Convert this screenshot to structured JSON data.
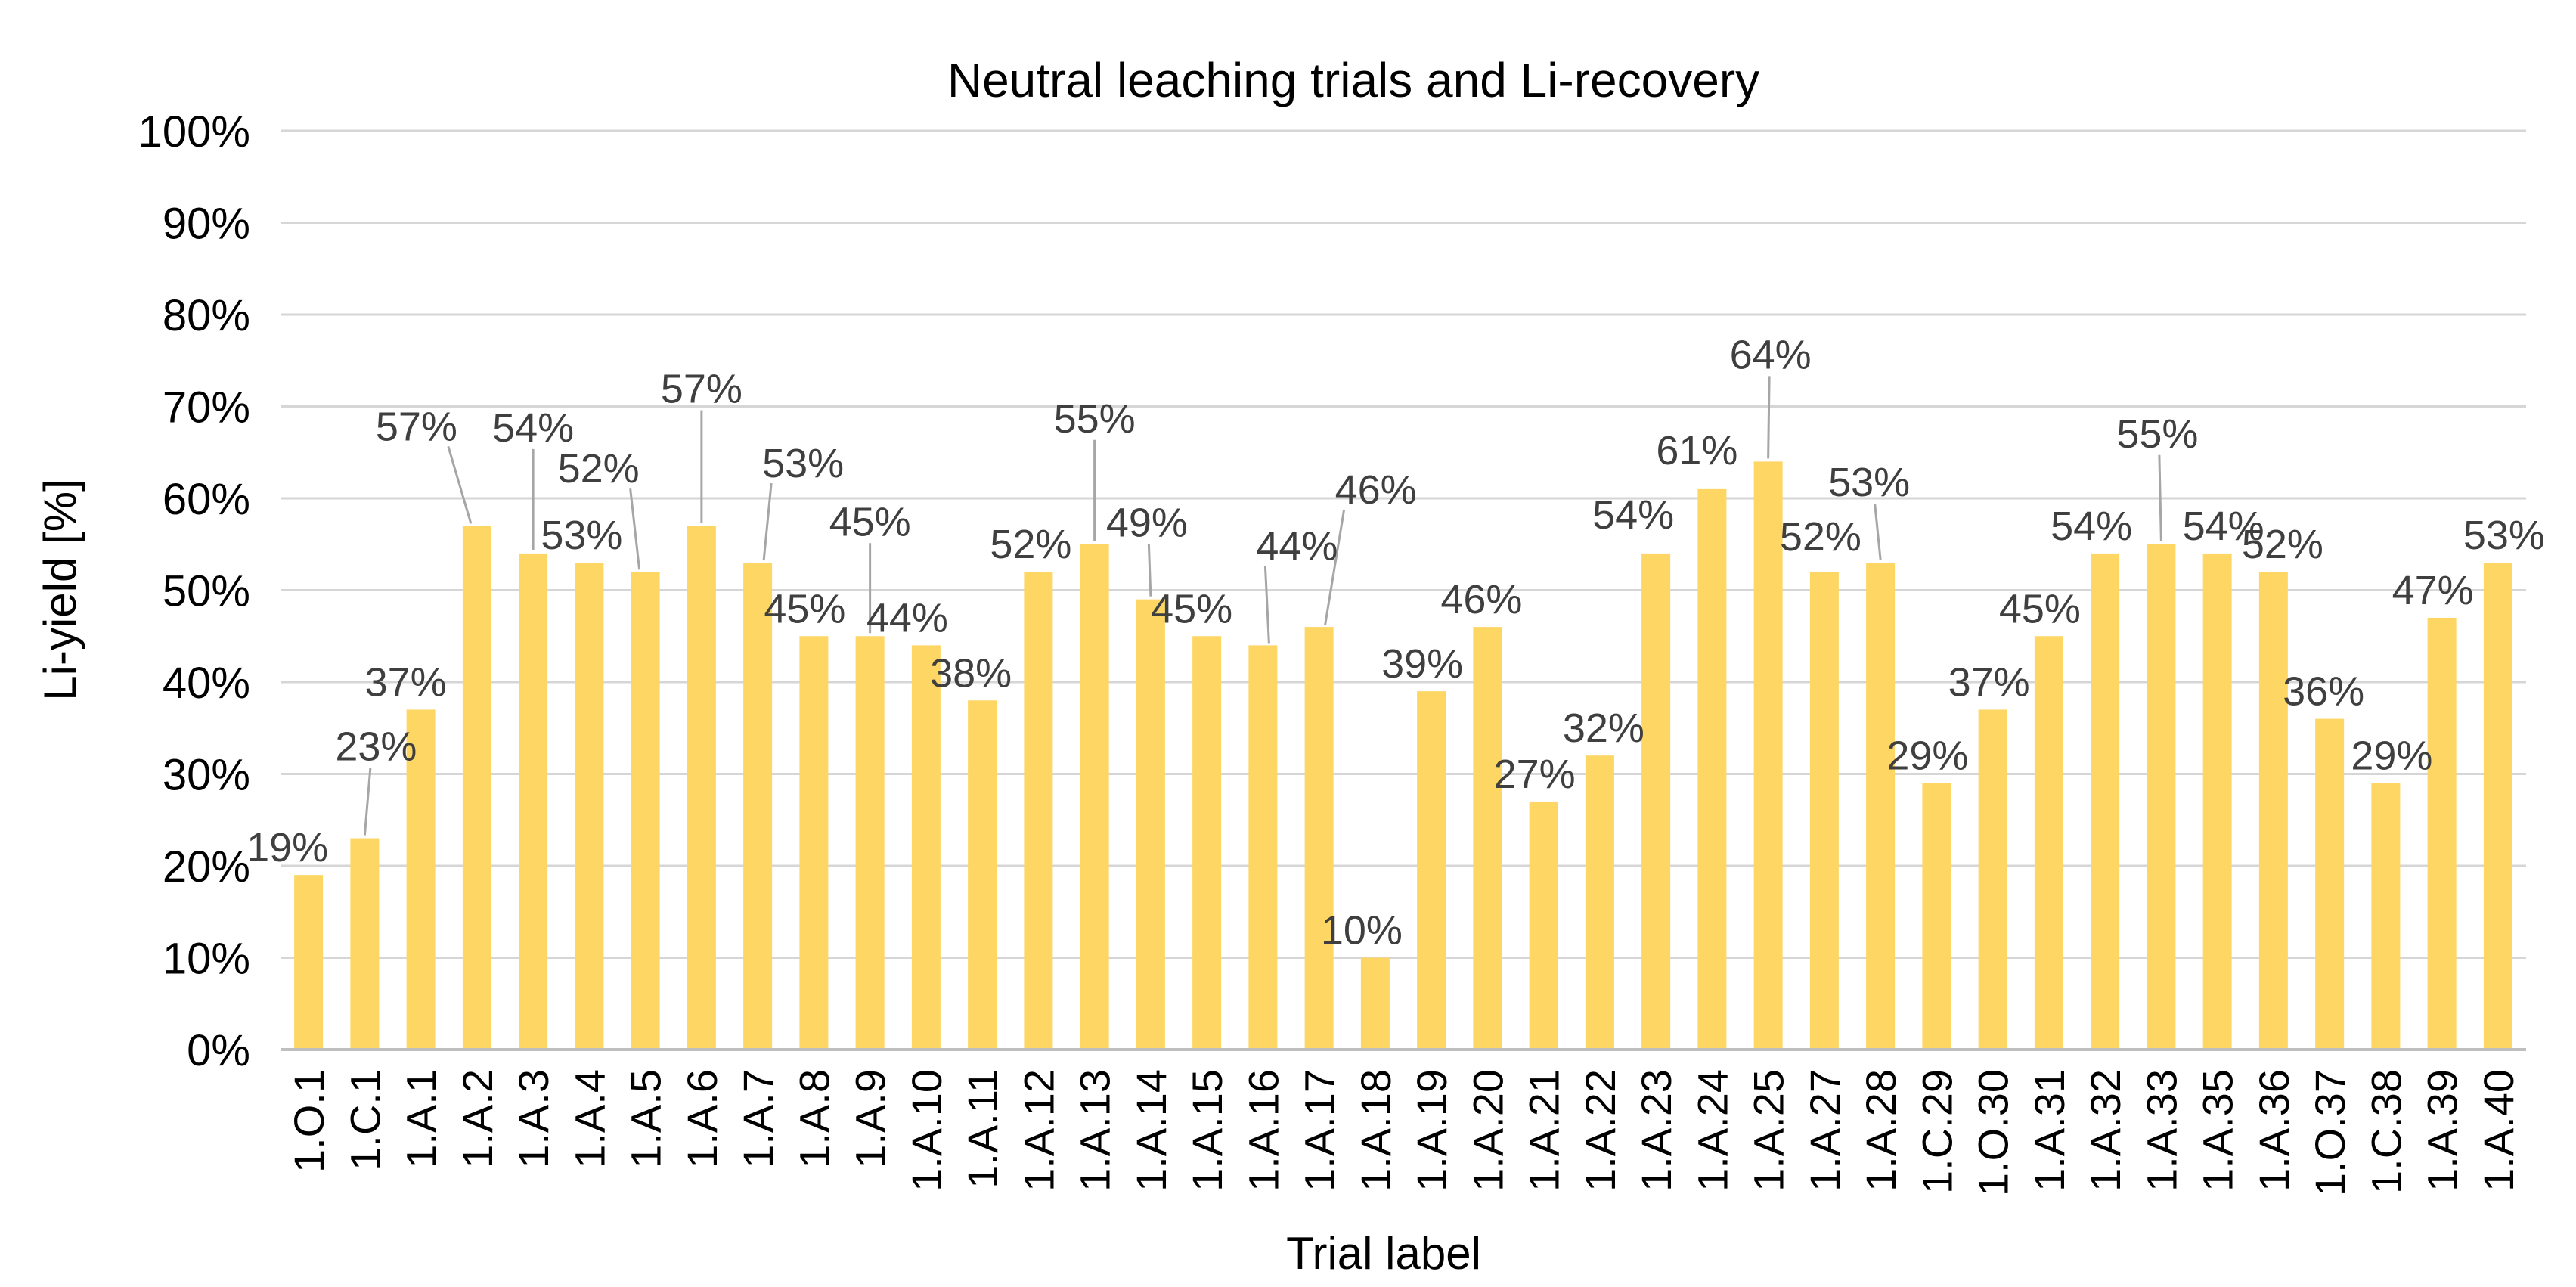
{
  "chart_data": {
    "type": "bar",
    "title": "Neutral leaching trials and Li-recovery",
    "xlabel": "Trial label",
    "ylabel": "Li-yield [%]",
    "legend": "none",
    "grid": "horizontal",
    "ylim": [
      0,
      100
    ],
    "ytick_step": 10,
    "ytick_labels": [
      "0%",
      "10%",
      "20%",
      "30%",
      "40%",
      "50%",
      "60%",
      "70%",
      "80%",
      "90%",
      "100%"
    ],
    "categories": [
      "1.O.1",
      "1.C.1",
      "1.A.1",
      "1.A.2",
      "1.A.3",
      "1.A.4",
      "1.A.5",
      "1.A.6",
      "1.A.7",
      "1.A.8",
      "1.A.9",
      "1.A.10",
      "1.A.11",
      "1.A.12",
      "1.A.13",
      "1.A.14",
      "1.A.15",
      "1.A.16",
      "1.A.17",
      "1.A.18",
      "1.A.19",
      "1.A.20",
      "1.A.21",
      "1.A.22",
      "1.A.23",
      "1.A.24",
      "1.A.25",
      "1.A.27",
      "1.A.28",
      "1.C.29",
      "1.O.30",
      "1.A.31",
      "1.A.32",
      "1.A.33",
      "1.A.35",
      "1.A.36",
      "1.O.37",
      "1.C.38",
      "1.A.39",
      "1.A.40"
    ],
    "values": [
      19,
      23,
      37,
      57,
      54,
      53,
      52,
      57,
      53,
      45,
      45,
      44,
      38,
      52,
      55,
      49,
      45,
      44,
      46,
      10,
      39,
      46,
      27,
      32,
      54,
      61,
      64,
      52,
      53,
      29,
      37,
      45,
      54,
      55,
      54,
      52,
      36,
      29,
      47,
      53
    ],
    "data_labels": [
      "19%",
      "23%",
      "37%",
      "57%",
      "54%",
      "53%",
      "52%",
      "57%",
      "53%",
      "45%",
      "45%",
      "44%",
      "38%",
      "52%",
      "55%",
      "49%",
      "45%",
      "44%",
      "46%",
      "10%",
      "39%",
      "46%",
      "27%",
      "32%",
      "54%",
      "61%",
      "64%",
      "52%",
      "53%",
      "29%",
      "37%",
      "45%",
      "54%",
      "55%",
      "54%",
      "52%",
      "36%",
      "29%",
      "47%",
      "53%"
    ],
    "colors": {
      "bar": "#FDD663",
      "gridline": "#D6D6D6",
      "axis_line": "#BFBFBF",
      "leader_line": "#A6A6A6",
      "data_label": "#3F3F3F",
      "tick_label": "#000000",
      "title": "#000000",
      "background": "#FFFFFF"
    }
  }
}
